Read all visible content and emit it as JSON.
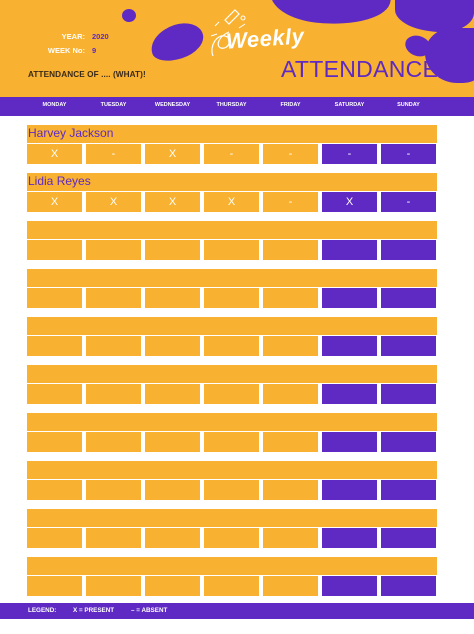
{
  "header": {
    "year_label": "YEAR:",
    "year_value": "2020",
    "week_label": "WEEK No:",
    "week_value": "9",
    "attendance_of": "ATTENDANCE OF .... (WHAT)!",
    "title_weekly": "Weekly",
    "title_attendance": "ATTENDANCE"
  },
  "days": [
    "MONDAY",
    "TUESDAY",
    "WEDNESDAY",
    "THURSDAY",
    "FRIDAY",
    "SATURDAY",
    "SUNDAY"
  ],
  "entries": [
    {
      "name": "Harvey Jackson",
      "marks": [
        "X",
        "-",
        "X",
        "-",
        "-",
        "-",
        "-"
      ]
    },
    {
      "name": "Lidia Reyes",
      "marks": [
        "X",
        "X",
        "X",
        "X",
        "-",
        "X",
        "-"
      ]
    },
    {
      "name": "",
      "marks": [
        "",
        "",
        "",
        "",
        "",
        "",
        ""
      ]
    },
    {
      "name": "",
      "marks": [
        "",
        "",
        "",
        "",
        "",
        "",
        ""
      ]
    },
    {
      "name": "",
      "marks": [
        "",
        "",
        "",
        "",
        "",
        "",
        ""
      ]
    },
    {
      "name": "",
      "marks": [
        "",
        "",
        "",
        "",
        "",
        "",
        ""
      ]
    },
    {
      "name": "",
      "marks": [
        "",
        "",
        "",
        "",
        "",
        "",
        ""
      ]
    },
    {
      "name": "",
      "marks": [
        "",
        "",
        "",
        "",
        "",
        "",
        ""
      ]
    },
    {
      "name": "",
      "marks": [
        "",
        "",
        "",
        "",
        "",
        "",
        ""
      ]
    },
    {
      "name": "",
      "marks": [
        "",
        "",
        "",
        "",
        "",
        "",
        ""
      ]
    }
  ],
  "legend": {
    "label": "LEGEND:",
    "present": "X = PRESENT",
    "absent": "– = ABSENT"
  },
  "colors": {
    "accent_yellow": "#f8b130",
    "accent_purple": "#5e2ac3"
  },
  "decorations": [
    "paint-blob-shapes",
    "pencil-doodle-icon"
  ]
}
